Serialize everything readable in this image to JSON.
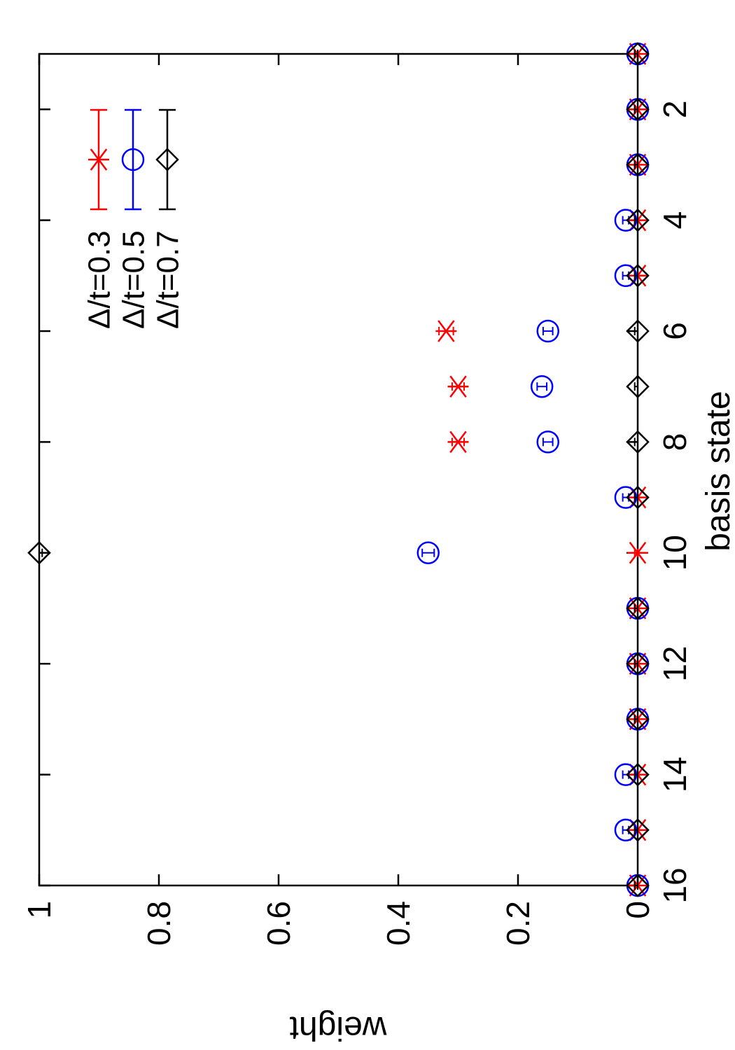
{
  "chart_data": {
    "type": "scatter",
    "orientation": "rotated-90-ccw",
    "xlabel": "basis state",
    "ylabel": "weight",
    "xlim": [
      1,
      16
    ],
    "ylim": [
      0,
      1
    ],
    "x_ticks": [
      2,
      4,
      6,
      8,
      10,
      12,
      14,
      16
    ],
    "y_ticks": [
      0,
      0.2,
      0.4,
      0.6,
      0.8,
      1
    ],
    "y_tick_labels": [
      "0",
      "0.2",
      "0.4",
      "0.6",
      "0.8",
      "1"
    ],
    "grid": false,
    "legend_position": "top-right",
    "x": [
      1,
      2,
      3,
      4,
      5,
      6,
      7,
      8,
      9,
      10,
      11,
      12,
      13,
      14,
      15,
      16
    ],
    "series": [
      {
        "name": "Δ/t=0.3",
        "marker": "asterisk",
        "color": "#ff0000",
        "values": [
          0.0,
          0.0,
          0.0,
          0.0,
          0.0,
          0.32,
          0.3,
          0.3,
          0.0,
          0.0,
          0.0,
          0.0,
          0.0,
          0.0,
          0.0,
          0.0
        ],
        "errors": [
          0.005,
          0.005,
          0.005,
          0.005,
          0.005,
          0.012,
          0.01,
          0.01,
          0.005,
          0.005,
          0.005,
          0.005,
          0.005,
          0.005,
          0.005,
          0.005
        ]
      },
      {
        "name": "Δ/t=0.5",
        "marker": "circle",
        "color": "#0000ff",
        "values": [
          0.0,
          0.0,
          0.0,
          0.02,
          0.02,
          0.15,
          0.16,
          0.15,
          0.02,
          0.35,
          0.0,
          0.0,
          0.0,
          0.02,
          0.02,
          0.0
        ],
        "errors": [
          0.005,
          0.005,
          0.005,
          0.005,
          0.005,
          0.008,
          0.008,
          0.008,
          0.005,
          0.01,
          0.005,
          0.005,
          0.005,
          0.005,
          0.005,
          0.005
        ]
      },
      {
        "name": "Δ/t=0.7",
        "marker": "diamond",
        "color": "#000000",
        "values": [
          0.0,
          0.0,
          0.0,
          0.0,
          0.0,
          0.0,
          0.0,
          0.0,
          0.0,
          1.0,
          0.0,
          0.0,
          0.0,
          0.0,
          0.0,
          0.0
        ],
        "errors": [
          0.005,
          0.005,
          0.005,
          0.005,
          0.005,
          0.005,
          0.005,
          0.005,
          0.005,
          0.005,
          0.005,
          0.005,
          0.005,
          0.005,
          0.005,
          0.005
        ]
      }
    ]
  }
}
